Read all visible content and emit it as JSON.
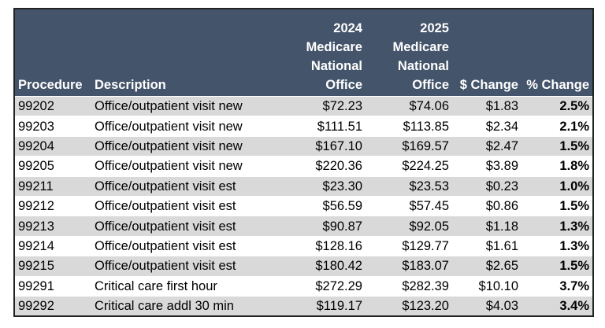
{
  "table": {
    "header": [
      [
        "Procedure"
      ],
      [
        "Description"
      ],
      [
        "2024",
        "Medicare",
        "National",
        "Office"
      ],
      [
        "2025",
        "Medicare",
        "National",
        "Office"
      ],
      [
        "$ Change"
      ],
      [
        "% Change"
      ]
    ],
    "rows": [
      [
        "99202",
        "Office/outpatient visit new",
        "$72.23",
        "$74.06",
        "$1.83",
        "2.5%"
      ],
      [
        "99203",
        "Office/outpatient visit new",
        "$111.51",
        "$113.85",
        "$2.34",
        "2.1%"
      ],
      [
        "99204",
        "Office/outpatient visit new",
        "$167.10",
        "$169.57",
        "$2.47",
        "1.5%"
      ],
      [
        "99205",
        "Office/outpatient visit new",
        "$220.36",
        "$224.25",
        "$3.89",
        "1.8%"
      ],
      [
        "99211",
        "Office/outpatient visit est",
        "$23.30",
        "$23.53",
        "$0.23",
        "1.0%"
      ],
      [
        "99212",
        "Office/outpatient visit est",
        "$56.59",
        "$57.45",
        "$0.86",
        "1.5%"
      ],
      [
        "99213",
        "Office/outpatient visit est",
        "$90.87",
        "$92.05",
        "$1.18",
        "1.3%"
      ],
      [
        "99214",
        "Office/outpatient visit est",
        "$128.16",
        "$129.77",
        "$1.61",
        "1.3%"
      ],
      [
        "99215",
        "Office/outpatient visit est",
        "$180.42",
        "$183.07",
        "$2.65",
        "1.5%"
      ],
      [
        "99291",
        "Critical care first hour",
        "$272.29",
        "$282.39",
        "$10.10",
        "3.7%"
      ],
      [
        "99292",
        "Critical care addl 30 min",
        "$119.17",
        "$123.20",
        "$4.03",
        "3.4%"
      ]
    ]
  }
}
